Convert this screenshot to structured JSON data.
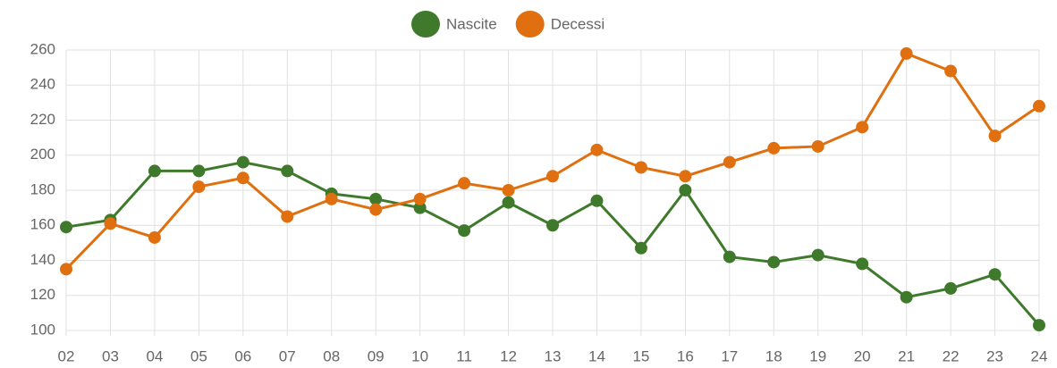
{
  "chart_data": {
    "type": "line",
    "categories": [
      "02",
      "03",
      "04",
      "05",
      "06",
      "07",
      "08",
      "09",
      "10",
      "11",
      "12",
      "13",
      "14",
      "15",
      "16",
      "17",
      "18",
      "19",
      "20",
      "21",
      "22",
      "23",
      "24"
    ],
    "series": [
      {
        "name": "Nascite",
        "color": "#3f7a2c",
        "values": [
          159,
          163,
          191,
          191,
          196,
          191,
          178,
          175,
          170,
          157,
          173,
          160,
          174,
          147,
          180,
          142,
          139,
          143,
          138,
          119,
          124,
          132,
          103
        ]
      },
      {
        "name": "Decessi",
        "color": "#e0700f",
        "values": [
          135,
          161,
          153,
          182,
          187,
          165,
          175,
          169,
          175,
          184,
          180,
          188,
          203,
          193,
          188,
          196,
          204,
          205,
          216,
          258,
          248,
          211,
          228
        ]
      }
    ],
    "ylim": [
      100,
      260
    ],
    "yticks": [
      100,
      120,
      140,
      160,
      180,
      200,
      220,
      240,
      260
    ],
    "grid": true,
    "legend": "top"
  }
}
